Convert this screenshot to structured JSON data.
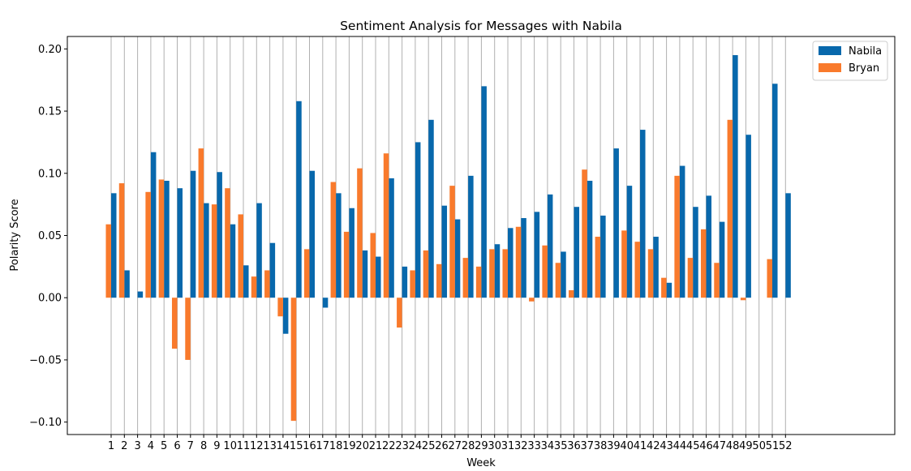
{
  "chart_data": {
    "type": "bar",
    "title": "Sentiment Analysis for Messages with Nabila",
    "xlabel": "Week",
    "ylabel": "Polarity Score",
    "ylim": [
      -0.11,
      0.21
    ],
    "yticks": [
      -0.1,
      -0.05,
      0.0,
      0.05,
      0.1,
      0.15,
      0.2
    ],
    "ytick_labels": [
      "−0.10",
      "−0.05",
      "0.00",
      "0.05",
      "0.10",
      "0.15",
      "0.20"
    ],
    "grid": "vertical",
    "legend_position": "top-right",
    "categories": [
      "1",
      "2",
      "3",
      "4",
      "5",
      "6",
      "7",
      "8",
      "9",
      "10",
      "11",
      "12",
      "13",
      "14",
      "15",
      "16",
      "17",
      "18",
      "19",
      "20",
      "21",
      "22",
      "23",
      "24",
      "25",
      "26",
      "27",
      "28",
      "29",
      "30",
      "31",
      "32",
      "33",
      "34",
      "35",
      "36",
      "37",
      "38",
      "39",
      "40",
      "41",
      "42",
      "43",
      "44",
      "45",
      "46",
      "47",
      "48",
      "49",
      "50",
      "51",
      "52"
    ],
    "series": [
      {
        "name": "Nabila",
        "color": "#0868ac",
        "values": [
          0.084,
          0.022,
          0.005,
          0.117,
          0.094,
          0.088,
          0.102,
          0.076,
          0.101,
          0.059,
          0.026,
          0.076,
          0.044,
          -0.029,
          0.158,
          0.102,
          -0.008,
          0.084,
          0.072,
          0.038,
          0.033,
          0.096,
          0.025,
          0.125,
          0.143,
          0.074,
          0.063,
          0.098,
          0.17,
          0.043,
          0.056,
          0.064,
          0.069,
          0.083,
          0.037,
          0.073,
          0.094,
          0.066,
          0.12,
          0.09,
          0.135,
          0.049,
          0.012,
          0.106,
          0.073,
          0.082,
          0.061,
          0.195,
          0.131,
          0.0,
          0.172,
          0.084
        ]
      },
      {
        "name": "Bryan",
        "color": "#f97a2c",
        "values": [
          0.059,
          0.092,
          0.0,
          0.085,
          0.095,
          -0.041,
          -0.05,
          0.12,
          0.075,
          0.088,
          0.067,
          0.017,
          0.022,
          -0.015,
          -0.099,
          0.039,
          0.0,
          0.093,
          0.053,
          0.104,
          0.052,
          0.116,
          -0.024,
          0.022,
          0.038,
          0.027,
          0.09,
          0.032,
          0.025,
          0.039,
          0.039,
          0.057,
          -0.003,
          0.042,
          0.028,
          0.006,
          0.103,
          0.049,
          0.0,
          0.054,
          0.045,
          0.039,
          0.016,
          0.098,
          0.032,
          0.055,
          0.028,
          0.143,
          -0.002,
          0.0,
          0.031,
          0.0
        ]
      }
    ]
  }
}
